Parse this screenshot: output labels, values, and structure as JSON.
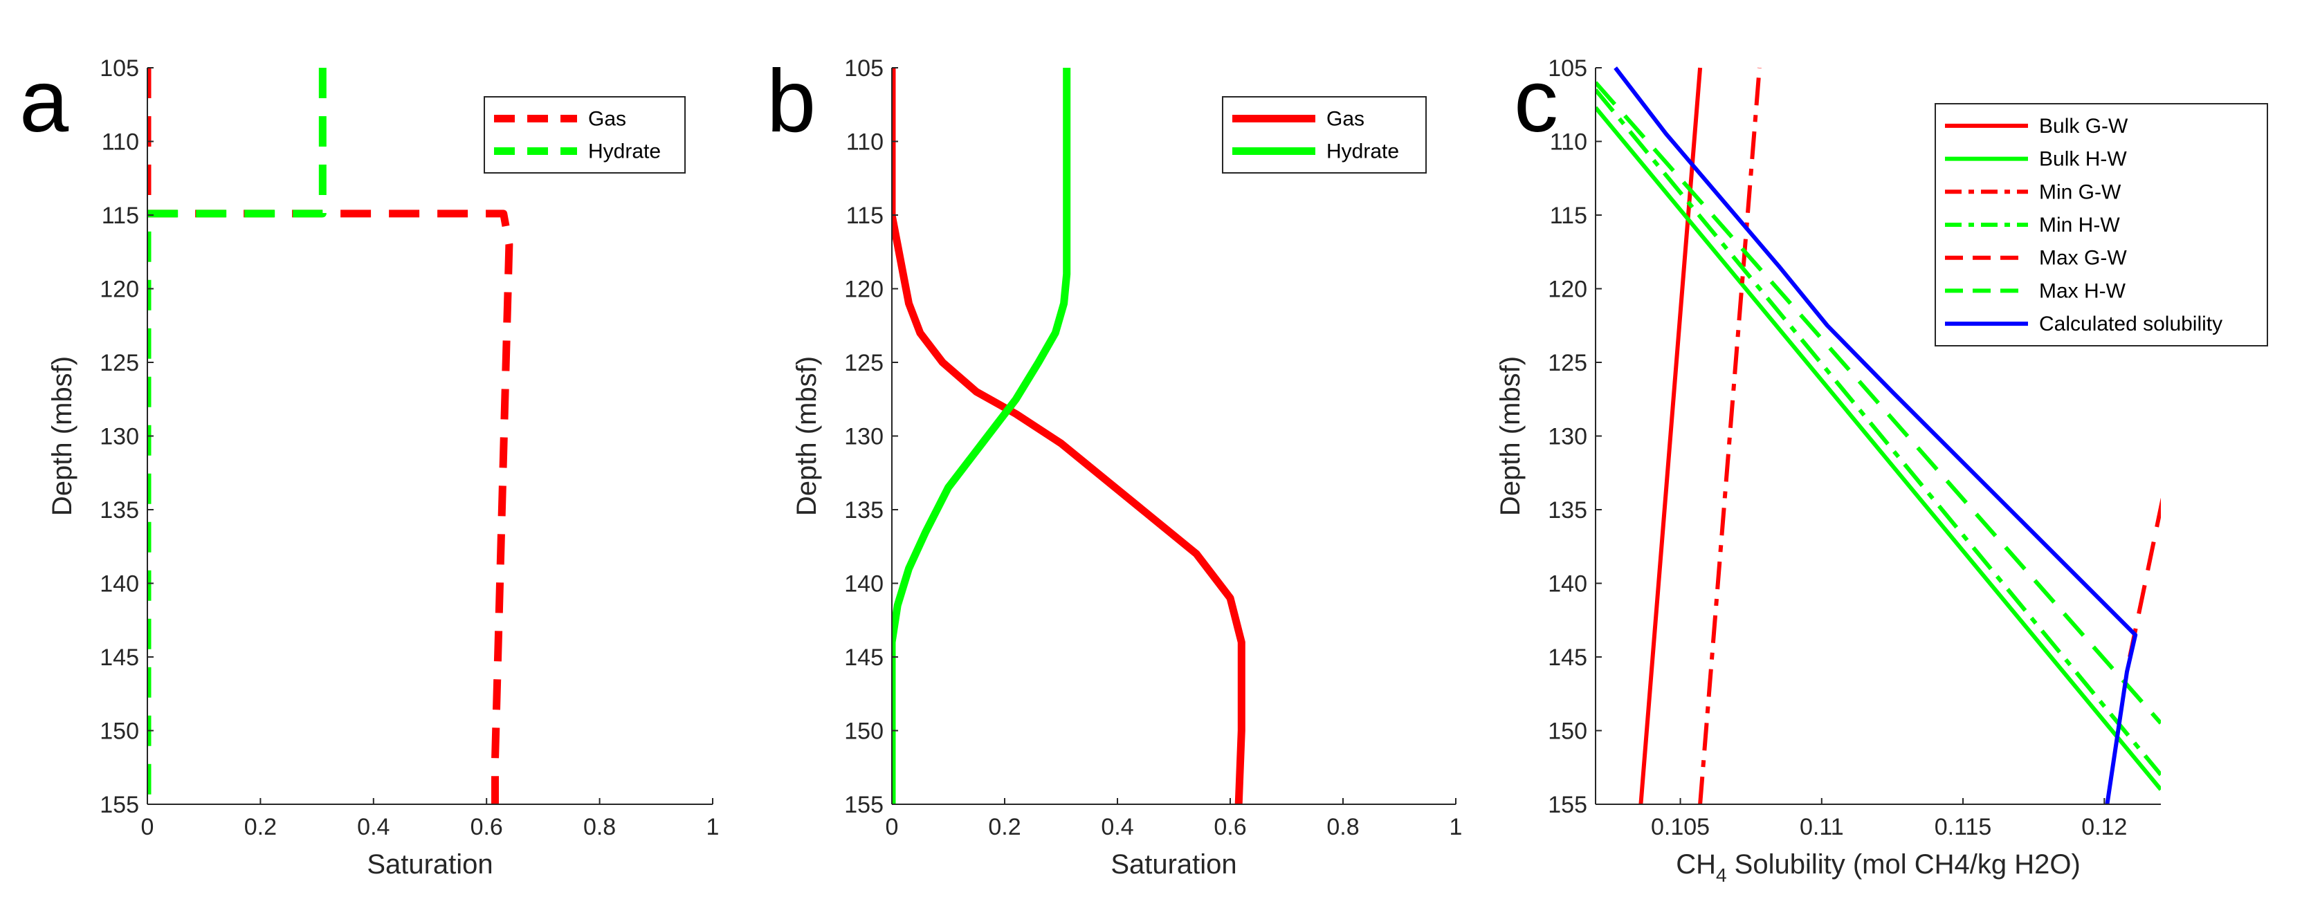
{
  "chart_data": [
    {
      "panel": "a",
      "type": "line",
      "xlabel": "Saturation",
      "ylabel": "Depth (mbsf)",
      "xlim": [
        0,
        1
      ],
      "ylim": [
        155,
        105
      ],
      "yreversed": true,
      "xticks": [
        "0",
        "0.2",
        "0.4",
        "0.6",
        "0.8",
        "1"
      ],
      "yticks": [
        "105",
        "110",
        "115",
        "120",
        "125",
        "130",
        "135",
        "140",
        "145",
        "150",
        "155"
      ],
      "legend_position": "top-right",
      "series": [
        {
          "name": "Gas",
          "color": "#ff0000",
          "style": "dashed",
          "x": [
            0,
            0,
            0.63,
            0.64,
            0.615,
            0.615
          ],
          "y": [
            105,
            114.9,
            114.9,
            117,
            152,
            155
          ]
        },
        {
          "name": "Hydrate",
          "color": "#00ff00",
          "style": "dashed",
          "x": [
            0.31,
            0.31,
            0,
            0,
            0
          ],
          "y": [
            105,
            114.9,
            114.9,
            115,
            155
          ]
        }
      ]
    },
    {
      "panel": "b",
      "type": "line",
      "xlabel": "Saturation",
      "ylabel": "Depth (mbsf)",
      "xlim": [
        0,
        1
      ],
      "ylim": [
        155,
        105
      ],
      "yreversed": true,
      "xticks": [
        "0",
        "0.2",
        "0.4",
        "0.6",
        "0.8",
        "1"
      ],
      "yticks": [
        "105",
        "110",
        "115",
        "120",
        "125",
        "130",
        "135",
        "140",
        "145",
        "150",
        "155"
      ],
      "legend_position": "top-right",
      "series": [
        {
          "name": "Gas",
          "color": "#ff0000",
          "style": "solid",
          "x": [
            0,
            0,
            0.01,
            0.02,
            0.03,
            0.05,
            0.09,
            0.15,
            0.22,
            0.3,
            0.38,
            0.46,
            0.54,
            0.6,
            0.62,
            0.62,
            0.615
          ],
          "y": [
            105,
            115,
            117,
            119,
            121,
            123,
            125,
            127,
            128.5,
            130.5,
            133,
            135.5,
            138,
            141,
            144,
            150,
            155
          ]
        },
        {
          "name": "Hydrate",
          "color": "#00ff00",
          "style": "solid",
          "x": [
            0.31,
            0.31,
            0.31,
            0.305,
            0.29,
            0.26,
            0.22,
            0.16,
            0.1,
            0.06,
            0.03,
            0.01,
            0,
            0
          ],
          "y": [
            105,
            115,
            119,
            121,
            123,
            125,
            127.5,
            130.5,
            133.5,
            136.5,
            139,
            141.5,
            144,
            155
          ]
        }
      ]
    },
    {
      "panel": "c",
      "type": "line",
      "xlabel": "CH4 Solubility (mol CH4/kg H2O)",
      "xlabel_main": "CH",
      "xlabel_sub": "4",
      "xlabel_rest": " Solubility (mol CH4/kg H2O)",
      "ylabel": "Depth (mbsf)",
      "xlim": [
        0.102,
        0.122
      ],
      "ylim": [
        155,
        105
      ],
      "yreversed": true,
      "xticks": [
        "0.105",
        "0.11",
        "0.115",
        "0.12"
      ],
      "xtick_values": [
        0.105,
        0.11,
        0.115,
        0.12
      ],
      "yticks": [
        "105",
        "110",
        "115",
        "120",
        "125",
        "130",
        "135",
        "140",
        "145",
        "150",
        "155"
      ],
      "legend_position": "top-right",
      "series": [
        {
          "name": "Bulk G-W",
          "color": "#ff0000",
          "style": "solid",
          "x": [
            0.1036,
            0.1057
          ],
          "y": [
            155,
            105
          ]
        },
        {
          "name": "Bulk H-W",
          "color": "#00ff00",
          "style": "solid",
          "x": [
            0.102,
            0.122
          ],
          "y": [
            107.7,
            154
          ]
        },
        {
          "name": "Min G-W",
          "color": "#ff0000",
          "style": "dashdot",
          "x": [
            0.1057,
            0.1078
          ],
          "y": [
            155,
            105
          ]
        },
        {
          "name": "Min H-W",
          "color": "#00ff00",
          "style": "dashdot",
          "x": [
            0.102,
            0.122
          ],
          "y": [
            106.5,
            153
          ]
        },
        {
          "name": "Max G-W",
          "color": "#ff0000",
          "style": "dashed",
          "x": [
            0.1209,
            0.1222
          ],
          "y": [
            145,
            133
          ]
        },
        {
          "name": "Max H-W",
          "color": "#00ff00",
          "style": "dashed",
          "x": [
            0.102,
            0.122
          ],
          "y": [
            106,
            149.5
          ]
        },
        {
          "name": "Calculated solubility",
          "color": "#0000ff",
          "style": "solid",
          "x": [
            0.1027,
            0.1045,
            0.1065,
            0.1085,
            0.1102,
            0.1125,
            0.1211,
            0.1208,
            0.1201
          ],
          "y": [
            105,
            109.5,
            114,
            118.5,
            122.5,
            127,
            143.5,
            146,
            155
          ]
        }
      ]
    }
  ]
}
